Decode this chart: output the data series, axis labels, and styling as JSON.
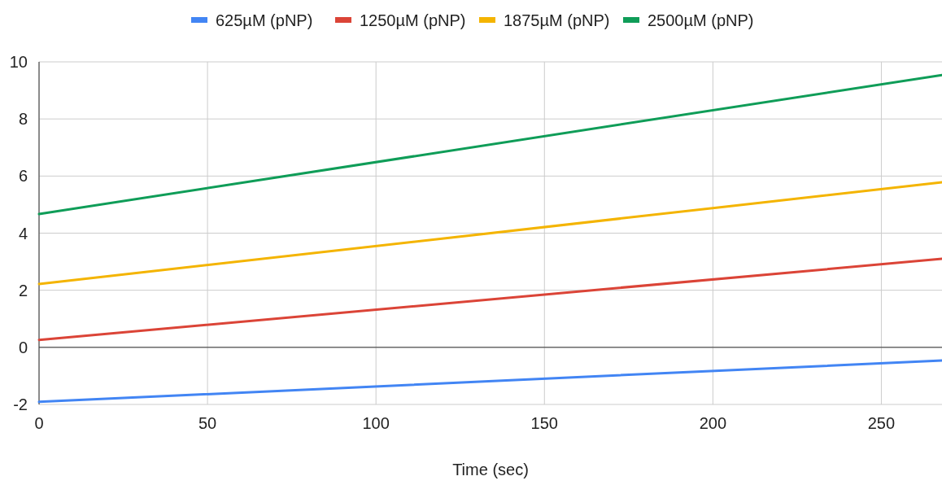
{
  "chart_data": {
    "type": "line",
    "xlabel": "Time (sec)",
    "x": [
      0,
      268
    ],
    "series": [
      {
        "name": "625µM (pNP)",
        "color": "#4285f4",
        "values": [
          -1.91,
          -0.46
        ]
      },
      {
        "name": "1250µM (pNP)",
        "color": "#db4437",
        "values": [
          0.26,
          3.1
        ]
      },
      {
        "name": "1875µM (pNP)",
        "color": "#f4b400",
        "values": [
          2.22,
          5.78
        ]
      },
      {
        "name": "2500µM (pNP)",
        "color": "#0f9d58",
        "values": [
          4.67,
          9.54
        ]
      }
    ],
    "xlim": [
      0,
      268
    ],
    "xticks": [
      0,
      50,
      100,
      150,
      200,
      250
    ],
    "ylim": [
      -2,
      10
    ],
    "yticks": [
      -2,
      0,
      2,
      4,
      6,
      8,
      10
    ],
    "grid": true,
    "legend": "top",
    "marker": "none",
    "line_style": "solid"
  }
}
